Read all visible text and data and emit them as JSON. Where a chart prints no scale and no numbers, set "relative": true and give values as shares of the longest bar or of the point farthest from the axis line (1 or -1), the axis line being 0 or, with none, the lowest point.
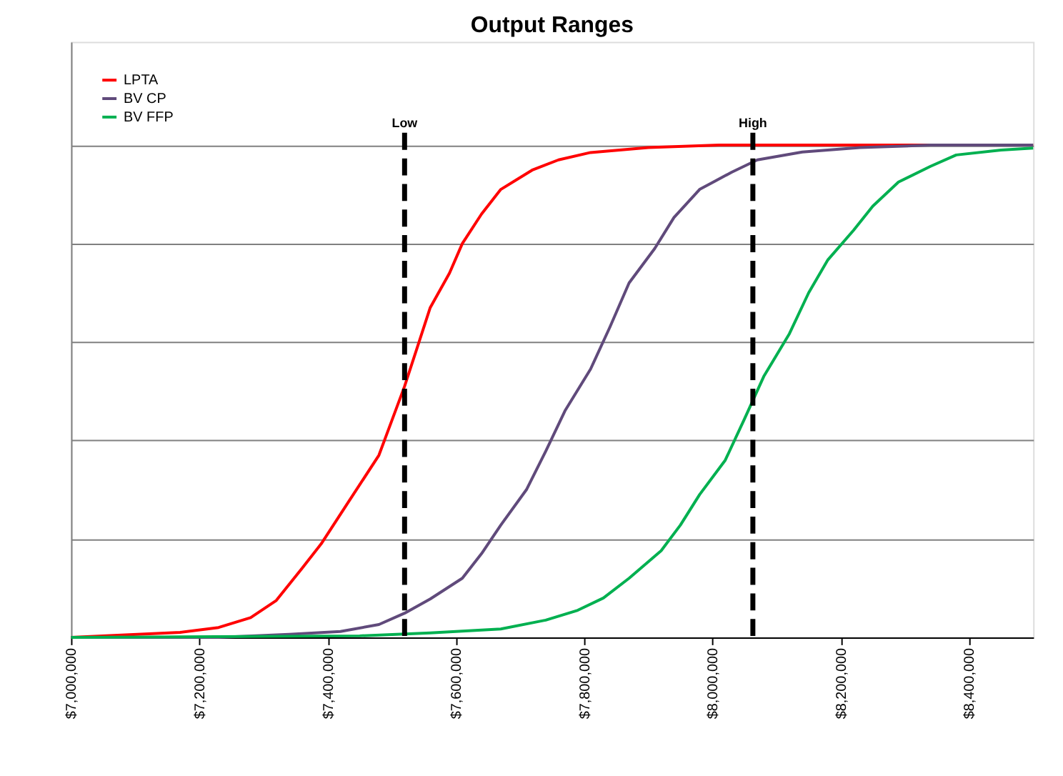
{
  "chart_data": {
    "type": "line",
    "title": "Output Ranges",
    "relative": true,
    "grid": "y",
    "legend": "top left",
    "line_style": "solid",
    "marker": "none",
    "xlim": [
      7000000,
      8500000
    ],
    "xticks": [
      {
        "value": 7000000,
        "label": "$7,000,000"
      },
      {
        "value": 7200000,
        "label": "$7,200,000"
      },
      {
        "value": 7400000,
        "label": "$7,400,000"
      },
      {
        "value": 7600000,
        "label": "$7,600,000"
      },
      {
        "value": 7800000,
        "label": "$7,800,000"
      },
      {
        "value": 8000000,
        "label": "$8,000,000"
      },
      {
        "value": 8200000,
        "label": "$8,200,000"
      },
      {
        "value": 8400000,
        "label": "$8,400,000"
      }
    ],
    "ref_lines": [
      {
        "axis": "x",
        "value": 7520000,
        "label": "Low",
        "color": "#000000",
        "line_style": "dashed"
      },
      {
        "axis": "x",
        "value": 8063000,
        "label": "High",
        "color": "#000000",
        "line_style": "dashed"
      }
    ],
    "series": [
      {
        "name": "LPTA",
        "color": "#ff0000",
        "x": [
          7000000,
          7170000,
          7230000,
          7280000,
          7320000,
          7360000,
          7390000,
          7430000,
          7480000,
          7500000,
          7520000,
          7540000,
          7560000,
          7590000,
          7610000,
          7640000,
          7670000,
          7720000,
          7760000,
          7810000,
          7900000,
          8010000,
          8500000
        ],
        "values": [
          0,
          0.01,
          0.02,
          0.04,
          0.075,
          0.14,
          0.19,
          0.27,
          0.37,
          0.44,
          0.51,
          0.59,
          0.67,
          0.74,
          0.8,
          0.86,
          0.91,
          0.95,
          0.97,
          0.985,
          0.995,
          1,
          1
        ]
      },
      {
        "name": "BV CP",
        "color": "#604a7b",
        "x": [
          7000000,
          7230000,
          7340000,
          7420000,
          7480000,
          7520000,
          7560000,
          7610000,
          7640000,
          7670000,
          7710000,
          7740000,
          7770000,
          7810000,
          7840000,
          7870000,
          7910000,
          7940000,
          7980000,
          8030000,
          8070000,
          8140000,
          8230000,
          8340000,
          8500000
        ],
        "values": [
          0,
          0,
          0.006,
          0.012,
          0.026,
          0.049,
          0.078,
          0.12,
          0.17,
          0.228,
          0.3,
          0.378,
          0.46,
          0.545,
          0.63,
          0.72,
          0.79,
          0.853,
          0.91,
          0.945,
          0.97,
          0.986,
          0.995,
          1,
          1
        ]
      },
      {
        "name": "BV FFP",
        "color": "#00b050",
        "x": [
          7000000,
          7450000,
          7560000,
          7670000,
          7740000,
          7790000,
          7830000,
          7870000,
          7920000,
          7950000,
          7980000,
          8020000,
          8050000,
          8080000,
          8120000,
          8150000,
          8180000,
          8220000,
          8250000,
          8290000,
          8340000,
          8380000,
          8450000,
          8500000
        ],
        "values": [
          0,
          0.003,
          0.009,
          0.017,
          0.035,
          0.055,
          0.08,
          0.12,
          0.176,
          0.228,
          0.29,
          0.36,
          0.444,
          0.53,
          0.617,
          0.7,
          0.767,
          0.827,
          0.876,
          0.925,
          0.957,
          0.98,
          0.99,
          0.994
        ]
      }
    ]
  }
}
